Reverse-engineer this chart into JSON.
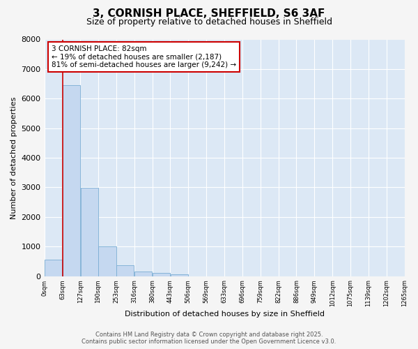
{
  "title": "3, CORNISH PLACE, SHEFFIELD, S6 3AF",
  "subtitle": "Size of property relative to detached houses in Sheffield",
  "bar_values": [
    550,
    6450,
    2980,
    1000,
    370,
    150,
    100,
    60,
    0,
    0,
    0,
    0,
    0,
    0,
    0,
    0,
    0,
    0,
    0,
    0
  ],
  "x_labels": [
    "0sqm",
    "63sqm",
    "127sqm",
    "190sqm",
    "253sqm",
    "316sqm",
    "380sqm",
    "443sqm",
    "506sqm",
    "569sqm",
    "633sqm",
    "696sqm",
    "759sqm",
    "822sqm",
    "886sqm",
    "949sqm",
    "1012sqm",
    "1075sqm",
    "1139sqm",
    "1202sqm",
    "1265sqm"
  ],
  "ylabel": "Number of detached properties",
  "xlabel": "Distribution of detached houses by size in Sheffield",
  "ylim": [
    0,
    8000
  ],
  "yticks": [
    0,
    1000,
    2000,
    3000,
    4000,
    5000,
    6000,
    7000,
    8000
  ],
  "bar_color": "#c5d8f0",
  "bar_edge_color": "#7aadd4",
  "vline_x": 1,
  "vline_color": "#cc0000",
  "annotation_title": "3 CORNISH PLACE: 82sqm",
  "annotation_line1": "← 19% of detached houses are smaller (2,187)",
  "annotation_line2": "81% of semi-detached houses are larger (9,242) →",
  "annotation_box_color": "#cc0000",
  "footer_line1": "Contains HM Land Registry data © Crown copyright and database right 2025.",
  "footer_line2": "Contains public sector information licensed under the Open Government Licence v3.0.",
  "fig_bg_color": "#f5f5f5",
  "plot_bg_color": "#dce8f5"
}
